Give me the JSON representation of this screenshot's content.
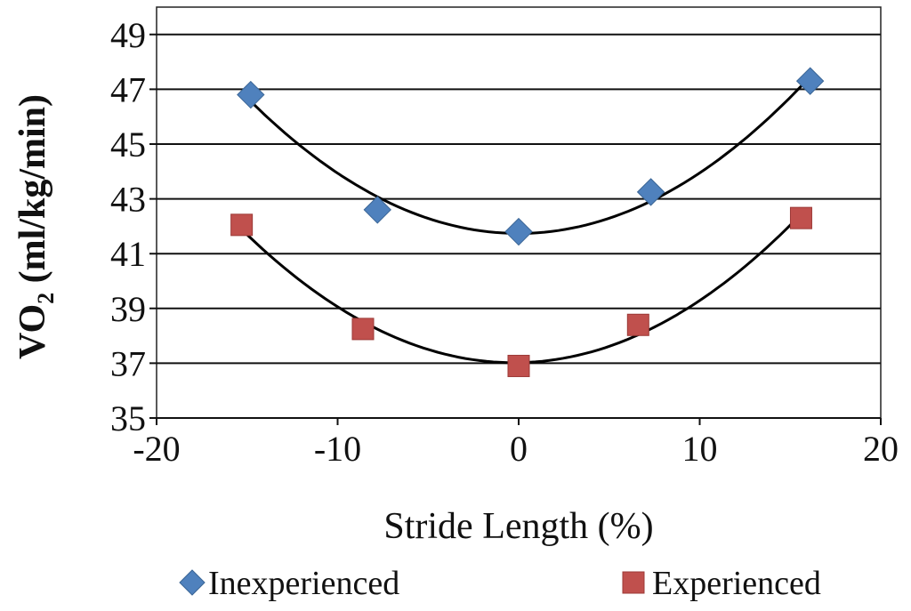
{
  "chart_data": {
    "type": "scatter",
    "xlabel": "Stride Length (%)",
    "ylabel_main": "VO",
    "ylabel_sub": "2",
    "ylabel_rest": " (ml/kg/min)",
    "xlim": [
      -20,
      20
    ],
    "ylim": [
      35,
      50
    ],
    "xticks": [
      "-20",
      "-10",
      "0",
      "10",
      "20"
    ],
    "yticks": [
      "35",
      "37",
      "39",
      "41",
      "43",
      "45",
      "47",
      "49"
    ],
    "grid": "horizontal",
    "legend_placement": "bottom",
    "trendline": "polynomial order 2",
    "series": [
      {
        "name": "Inexperienced",
        "marker": "diamond",
        "color": "#4f81bd",
        "x": [
          -14.8,
          -7.8,
          0,
          7.3,
          16.1
        ],
        "y": [
          46.8,
          42.6,
          41.8,
          43.25,
          47.3
        ]
      },
      {
        "name": "Experienced",
        "marker": "square",
        "color": "#c0504d",
        "x": [
          -15.3,
          -8.6,
          0,
          6.6,
          15.6
        ],
        "y": [
          42.05,
          38.25,
          36.9,
          38.4,
          42.3
        ]
      }
    ]
  }
}
